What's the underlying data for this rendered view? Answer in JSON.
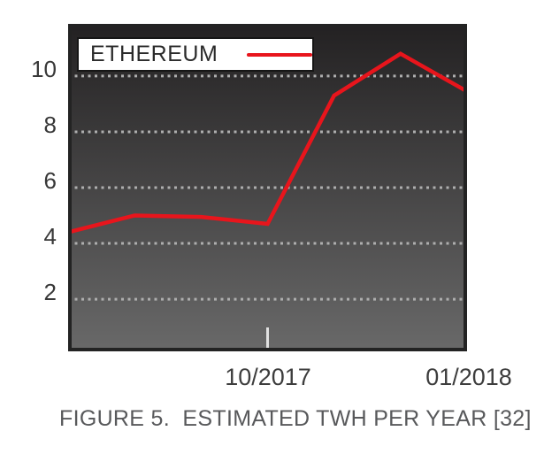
{
  "figure": {
    "caption": "FIGURE 5.  ESTIMATED TWH PER YEAR [32]"
  },
  "legend": {
    "label": "ETHEREUM"
  },
  "colors": {
    "line": "#e8151c",
    "plot_top": "#232122",
    "plot_bottom": "#696969",
    "plot_border": "#232323",
    "grid": "#aeaeae",
    "axis_tick_mark": "#e0e0e0",
    "axis_text": "#3a3a3a",
    "caption_text": "#58595b",
    "legend_bg": "#ffffff",
    "legend_border": "#161616"
  },
  "chart_data": {
    "type": "line",
    "title": "",
    "xlabel": "",
    "ylabel": "",
    "ylim": [
      0.13,
      11.87
    ],
    "yticks": [
      2,
      4,
      6,
      8,
      10
    ],
    "grid": "horizontal-dotted",
    "legend_position": "top-left",
    "x_index": [
      0,
      1,
      2,
      3,
      4,
      5,
      6
    ],
    "x_tick_labels": [
      {
        "index": 3,
        "label": "10/2017"
      },
      {
        "index": 6,
        "label": "01/2018"
      }
    ],
    "series": [
      {
        "name": "ETHEREUM",
        "color": "#e8151c",
        "values": [
          4.4,
          5.0,
          4.95,
          4.7,
          9.3,
          10.8,
          9.45
        ]
      }
    ]
  }
}
